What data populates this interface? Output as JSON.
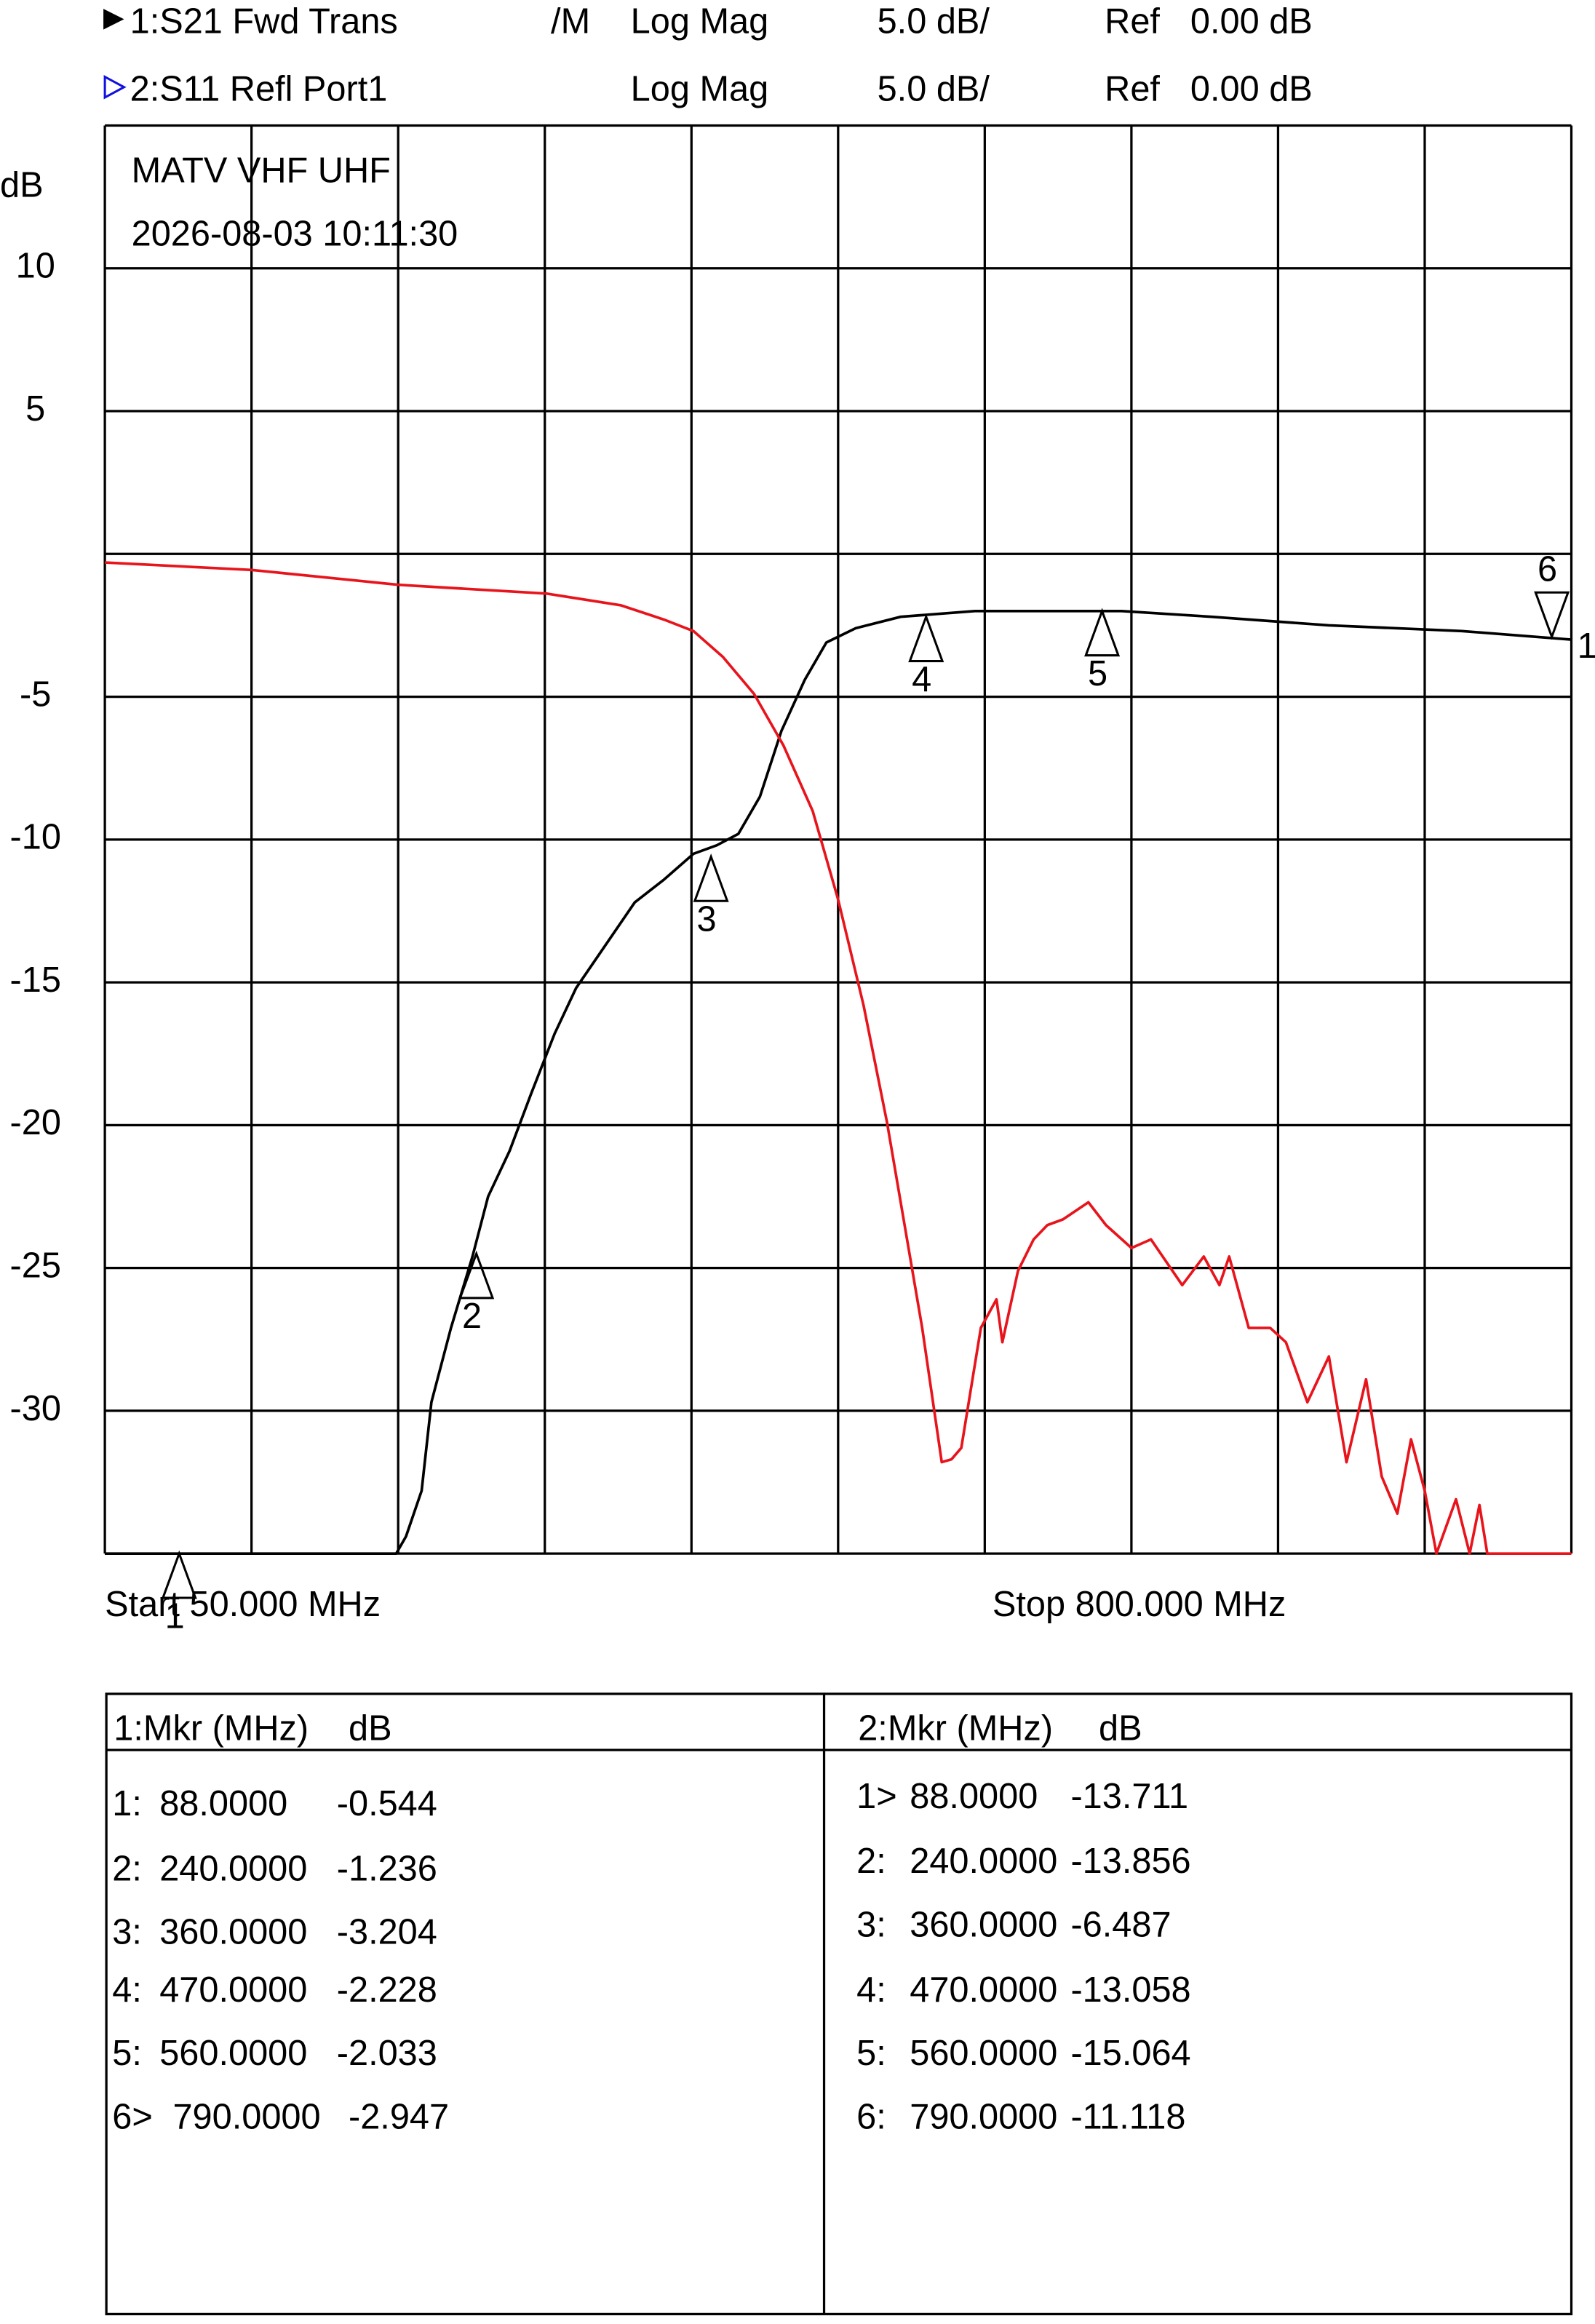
{
  "chart_data": {
    "type": "line",
    "title": "MATV VHF UHF",
    "subtitle": "2026-08-03 10:11:30",
    "y_label": "dB",
    "x_start_label": "Start 50.000 MHz",
    "x_stop_label": "Stop 800.000 MHz",
    "xlim": [
      50,
      800
    ],
    "ylim": [
      -35,
      15
    ],
    "yticks": [
      -30,
      -25,
      -20,
      -15,
      -10,
      -5,
      5,
      10
    ],
    "grid": true,
    "series": [
      {
        "name": "1:S21 Fwd Trans",
        "flag": "/M",
        "format": "Log Mag",
        "scale": "5.0 dB/",
        "ref_label": "Ref",
        "ref": "0.00 dB",
        "header_color": "#000000",
        "color": "#000000",
        "trace_label": "1",
        "x": [
          50,
          199,
          204,
          212,
          217,
          227,
          238,
          246,
          257,
          268,
          280,
          291,
          306,
          321,
          336,
          351,
          363,
          374,
          385,
          396,
          408,
          419,
          434,
          457,
          495,
          525,
          570,
          616,
          676,
          744,
          800
        ],
        "values": [
          -35,
          -35,
          -34.4,
          -32.8,
          -29.7,
          -27.1,
          -24.6,
          -22.5,
          -20.9,
          -18.9,
          -16.8,
          -15.2,
          -13.7,
          -12.2,
          -11.4,
          -10.5,
          -10.2,
          -9.8,
          -8.5,
          -6.2,
          -4.4,
          -3.1,
          -2.6,
          -2.2,
          -2.0,
          -2.0,
          -2.0,
          -2.2,
          -2.5,
          -2.7,
          -3.0
        ]
      },
      {
        "name": "2:S11 Refl Port1",
        "format": "Log Mag",
        "scale": "5.0 dB/",
        "ref_label": "Ref",
        "ref": "0.00 dB",
        "header_color": "#1010e0",
        "color": "#e8141c",
        "x": [
          50,
          125,
          200,
          276,
          314,
          336,
          351,
          366,
          382,
          397,
          412,
          425,
          438,
          450,
          459,
          468,
          478,
          483,
          488,
          498,
          506,
          509,
          517,
          525,
          532,
          540,
          553,
          562,
          575,
          585,
          601,
          612,
          620,
          625,
          635,
          646,
          654,
          665,
          676,
          685,
          695,
          703,
          711,
          718,
          725,
          731,
          741,
          748,
          753,
          757,
          800
        ],
        "values": [
          -0.3,
          -0.56,
          -1.08,
          -1.39,
          -1.8,
          -2.3,
          -2.7,
          -3.6,
          -4.9,
          -6.7,
          -9.0,
          -12.1,
          -15.8,
          -19.9,
          -23.5,
          -27.1,
          -31.8,
          -31.7,
          -31.3,
          -27.1,
          -26.1,
          -27.6,
          -25.1,
          -24.0,
          -23.5,
          -23.3,
          -22.7,
          -23.5,
          -24.3,
          -24.0,
          -25.6,
          -24.6,
          -25.6,
          -24.6,
          -27.1,
          -27.1,
          -27.6,
          -29.7,
          -28.1,
          -31.8,
          -28.9,
          -32.3,
          -33.6,
          -31.0,
          -32.8,
          -35,
          -33.1,
          -35,
          -33.3,
          -35,
          -35
        ]
      }
    ],
    "markers": [
      {
        "label": "1",
        "x": 88,
        "y": -35,
        "pointing": "up"
      },
      {
        "label": "2",
        "x": 240,
        "y": -24.5,
        "pointing": "up"
      },
      {
        "label": "3",
        "x": 360,
        "y": -10.6,
        "pointing": "up"
      },
      {
        "label": "4",
        "x": 470,
        "y": -2.2,
        "pointing": "up"
      },
      {
        "label": "5",
        "x": 560,
        "y": -2.0,
        "pointing": "up"
      },
      {
        "label": "6",
        "x": 790,
        "y": -2.9,
        "pointing": "down"
      }
    ]
  },
  "marker_tables": [
    {
      "header": [
        "1:Mkr (MHz)",
        "dB"
      ],
      "rows": [
        {
          "marker": "1:",
          "freq": "88.0000",
          "value": "-0.544",
          "color": "#e8141c"
        },
        {
          "marker": "2:",
          "freq": "240.0000",
          "value": "-1.236",
          "color": "#e8141c"
        },
        {
          "marker": "3:",
          "freq": "360.0000",
          "value": "-3.204",
          "color": "#e8141c"
        },
        {
          "marker": "4:",
          "freq": "470.0000",
          "value": "-2.228",
          "color": "#000000"
        },
        {
          "marker": "5:",
          "freq": "560.0000",
          "value": "-2.033",
          "color": "#000000"
        },
        {
          "marker": "6>",
          "freq": "790.0000",
          "value": "-2.947",
          "color": "#000000"
        }
      ]
    },
    {
      "header": [
        "2:Mkr (MHz)",
        "dB"
      ],
      "rows": [
        {
          "marker": "1>",
          "freq": "88.0000",
          "value": "-13.711",
          "color": "#e8141c"
        },
        {
          "marker": "2:",
          "freq": "240.0000",
          "value": "-13.856",
          "color": "#e8141c"
        },
        {
          "marker": "3:",
          "freq": "360.0000",
          "value": "-6.487",
          "color": "#e8141c"
        },
        {
          "marker": "4:",
          "freq": "470.0000",
          "value": "-13.058",
          "color": "#000000"
        },
        {
          "marker": "5:",
          "freq": "560.0000",
          "value": "-15.064",
          "color": "#000000"
        },
        {
          "marker": "6:",
          "freq": "790.0000",
          "value": "-11.118",
          "color": "#000000"
        }
      ]
    }
  ]
}
